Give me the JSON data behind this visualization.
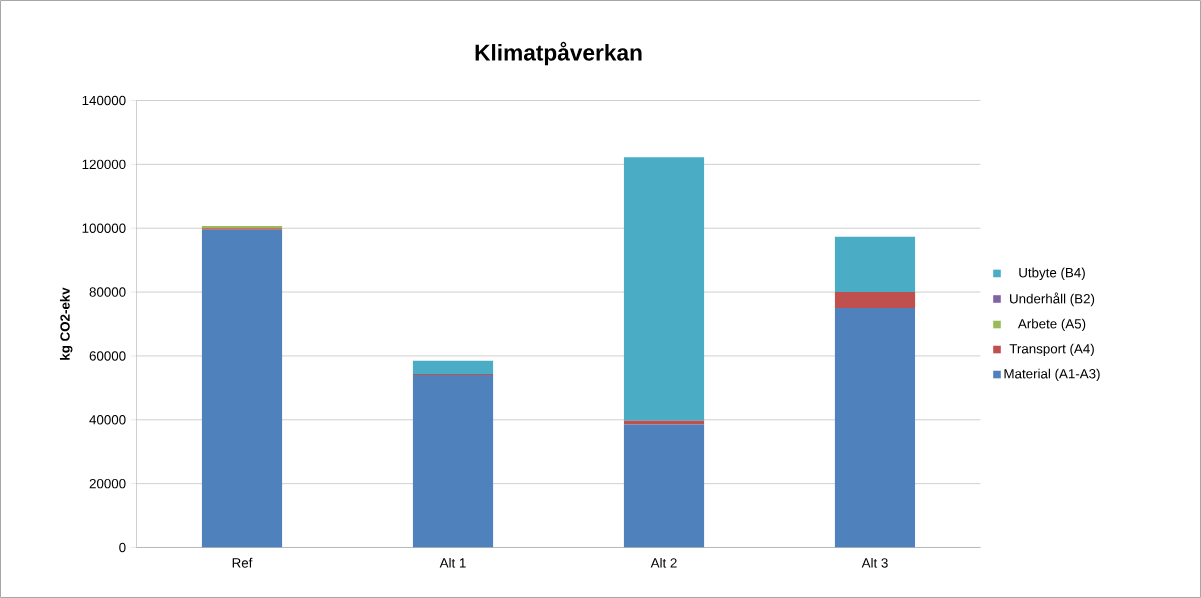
{
  "chart_data": {
    "type": "bar",
    "stacked": true,
    "title": "Klimatpåverkan",
    "ylabel": "kg CO2-ekv",
    "categories": [
      "Ref",
      "Alt 1",
      "Alt 2",
      "Alt 3"
    ],
    "series": [
      {
        "name": "Material (A1-A3)",
        "color": "#4f81bd",
        "values": [
          99500,
          54000,
          38500,
          75000
        ]
      },
      {
        "name": "Transport (A4)",
        "color": "#c0504d",
        "values": [
          500,
          300,
          1200,
          5000
        ]
      },
      {
        "name": "Arbete (A5)",
        "color": "#9bbb59",
        "values": [
          700,
          0,
          0,
          0
        ]
      },
      {
        "name": "Underhåll (B2)",
        "color": "#8064a2",
        "values": [
          0,
          0,
          0,
          0
        ]
      },
      {
        "name": "Utbyte (B4)",
        "color": "#4bacc6",
        "values": [
          0,
          4200,
          82500,
          17300
        ]
      }
    ],
    "ylim": [
      0,
      140000
    ],
    "yticks": [
      0,
      20000,
      40000,
      60000,
      80000,
      100000,
      120000,
      140000
    ],
    "grid": "y",
    "legend": "right"
  }
}
